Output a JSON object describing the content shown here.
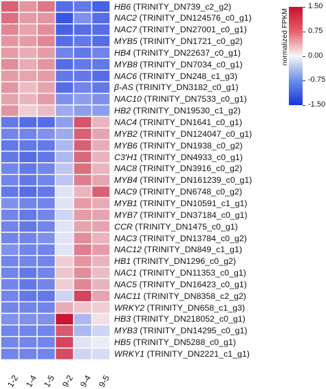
{
  "chart_data": {
    "type": "heatmap",
    "columns": [
      "1-2",
      "1-4",
      "1-5",
      "9-2",
      "9-4",
      "9-5"
    ],
    "rows": [
      {
        "gene": "HB6",
        "id": "(TRINITY_DN739_c2_g2)",
        "values": [
          0.9,
          0.55,
          0.75,
          -1.0,
          -0.9,
          -1.1
        ]
      },
      {
        "gene": "NAC2",
        "id": "(TRINITY_DN124576_c0_g1)",
        "values": [
          0.8,
          0.5,
          0.55,
          -1.2,
          -0.7,
          -1.0
        ]
      },
      {
        "gene": "NAC7",
        "id": "(TRINITY_DN27001_c0_g1)",
        "values": [
          0.65,
          0.45,
          0.6,
          -1.1,
          -1.0,
          -1.0
        ]
      },
      {
        "gene": "MYB5",
        "id": "(TRINITY_DN1721_c0_g2)",
        "values": [
          0.55,
          0.5,
          0.65,
          -1.0,
          -0.9,
          -1.0
        ]
      },
      {
        "gene": "HB4",
        "id": "(TRINITY_DN22637_c0_g1)",
        "values": [
          0.5,
          0.4,
          0.5,
          -0.8,
          -0.9,
          -0.8
        ]
      },
      {
        "gene": "MYB8",
        "id": "(TRINITY_DN7034_c0_g1)",
        "values": [
          0.6,
          0.4,
          0.55,
          -1.0,
          -0.9,
          -0.9
        ]
      },
      {
        "gene": "NAC6",
        "id": "(TRINITY_DN248_c1_g3)",
        "values": [
          0.5,
          0.45,
          0.5,
          -0.9,
          -0.9,
          -1.0
        ]
      },
      {
        "gene": "β-AS",
        "id": "(TRINITY_DN3182_c0_g1)",
        "values": [
          0.55,
          0.3,
          0.45,
          -1.0,
          -0.8,
          -0.9
        ]
      },
      {
        "gene": "NAC10",
        "id": "(TRINITY_DN7533_c0_g1)",
        "values": [
          0.45,
          0.35,
          0.5,
          -0.7,
          -0.6,
          -0.7
        ]
      },
      {
        "gene": "HB2",
        "id": "(TRINITY_DN19530_c1_g2)",
        "values": [
          0.55,
          0.2,
          0.3,
          -0.5,
          -0.6,
          -0.6
        ]
      },
      {
        "gene": "NAC4",
        "id": "(TRINITY_DN1641_c0_g1)",
        "values": [
          -0.9,
          -1.0,
          -1.0,
          -0.6,
          1.0,
          0.35
        ]
      },
      {
        "gene": "MYB2",
        "id": "(TRINITY_DN124047_c0_g1)",
        "values": [
          -0.8,
          -0.8,
          -0.7,
          -0.5,
          0.9,
          0.45
        ]
      },
      {
        "gene": "MYB6",
        "id": "(TRINITY_DN1938_c0_g2)",
        "values": [
          -0.9,
          -0.9,
          -0.9,
          -0.4,
          0.9,
          0.4
        ]
      },
      {
        "gene": "C3'H1",
        "id": "(TRINITY_DN4933_c0_g1)",
        "values": [
          -0.9,
          -1.0,
          -0.9,
          -0.4,
          0.85,
          0.35
        ]
      },
      {
        "gene": "NAC8",
        "id": "(TRINITY_DN3916_c0_g2)",
        "values": [
          -0.8,
          -0.9,
          -0.8,
          -0.3,
          0.8,
          0.35
        ]
      },
      {
        "gene": "MYB4",
        "id": "(TRINITY_DN161239_c0_g1)",
        "values": [
          -0.8,
          -0.9,
          -0.8,
          -0.3,
          0.7,
          0.45
        ]
      },
      {
        "gene": "NAC9",
        "id": "(TRINITY_DN6748_c0_g2)",
        "values": [
          -0.9,
          -1.0,
          -0.9,
          -0.1,
          0.35,
          0.9
        ]
      },
      {
        "gene": "MYB1",
        "id": "(TRINITY_DN10591_c1_g1)",
        "values": [
          -0.7,
          -0.8,
          -0.8,
          -0.1,
          0.5,
          0.4
        ]
      },
      {
        "gene": "MYB7",
        "id": "(TRINITY_DN37184_c0_g1)",
        "values": [
          -0.8,
          -0.9,
          -0.8,
          -0.2,
          0.5,
          0.45
        ]
      },
      {
        "gene": "CCR",
        "id": "(TRINITY_DN1475_c0_g1)",
        "values": [
          -0.8,
          -0.9,
          -0.8,
          -0.1,
          0.45,
          0.45
        ]
      },
      {
        "gene": "NAC3",
        "id": "(TRINITY_DN13784_c0_g2)",
        "values": [
          -0.8,
          -0.8,
          -0.7,
          -0.1,
          0.6,
          0.35
        ]
      },
      {
        "gene": "NAC12",
        "id": "(TRINITY_DN849_c1_g1)",
        "values": [
          -0.7,
          -0.8,
          -0.8,
          -0.1,
          0.7,
          0.5
        ]
      },
      {
        "gene": "HB1",
        "id": "(TRINITY_DN1296_c0_g2)",
        "values": [
          -0.8,
          -0.8,
          -0.8,
          0.2,
          0.55,
          0.35
        ]
      },
      {
        "gene": "NAC1",
        "id": "(TRINITY_DN11353_c0_g1)",
        "values": [
          -0.8,
          -0.9,
          -0.8,
          0.25,
          0.6,
          0.3
        ]
      },
      {
        "gene": "NAC5",
        "id": "(TRINITY_DN16423_c0_g1)",
        "values": [
          -0.8,
          -0.9,
          -0.8,
          0.2,
          0.65,
          0.35
        ]
      },
      {
        "gene": "NAC11",
        "id": "(TRINITY_DN8358_c2_g2)",
        "values": [
          -0.8,
          -0.9,
          -0.9,
          -0.2,
          1.1,
          0.45
        ]
      },
      {
        "gene": "WRKY2",
        "id": "(TRINITY_DN658_c1_g3)",
        "values": [
          -0.8,
          -0.8,
          -0.8,
          0.4,
          0.25,
          0.2
        ]
      },
      {
        "gene": "HB3",
        "id": "(TRINITY_DN218052_c0_g1)",
        "values": [
          -0.7,
          -0.7,
          -0.7,
          1.45,
          -0.4,
          0.1
        ]
      },
      {
        "gene": "MYB3",
        "id": "(TRINITY_DN14295_c0_g1)",
        "values": [
          -0.8,
          -0.8,
          -0.8,
          0.95,
          -0.4,
          -0.2
        ]
      },
      {
        "gene": "HB5",
        "id": "(TRINITY_DN5288_c0_g1)",
        "values": [
          -0.8,
          -0.8,
          -0.8,
          1.1,
          -0.1,
          -0.05
        ]
      },
      {
        "gene": "WRKY1",
        "id": "(TRINITY_DN2221_c1_g1)",
        "values": [
          -0.8,
          -0.8,
          -0.8,
          1.05,
          -0.2,
          -0.15
        ]
      }
    ],
    "colorbar": {
      "label": "normalized FPKM",
      "ticks": [
        "1.50",
        "0.75",
        "0.00",
        "-0.75",
        "-1.50"
      ],
      "range": [
        -1.5,
        1.5
      ],
      "colors": {
        "high": "#c8102e",
        "mid": "#f7f7f7",
        "low": "#1434e0"
      }
    }
  }
}
